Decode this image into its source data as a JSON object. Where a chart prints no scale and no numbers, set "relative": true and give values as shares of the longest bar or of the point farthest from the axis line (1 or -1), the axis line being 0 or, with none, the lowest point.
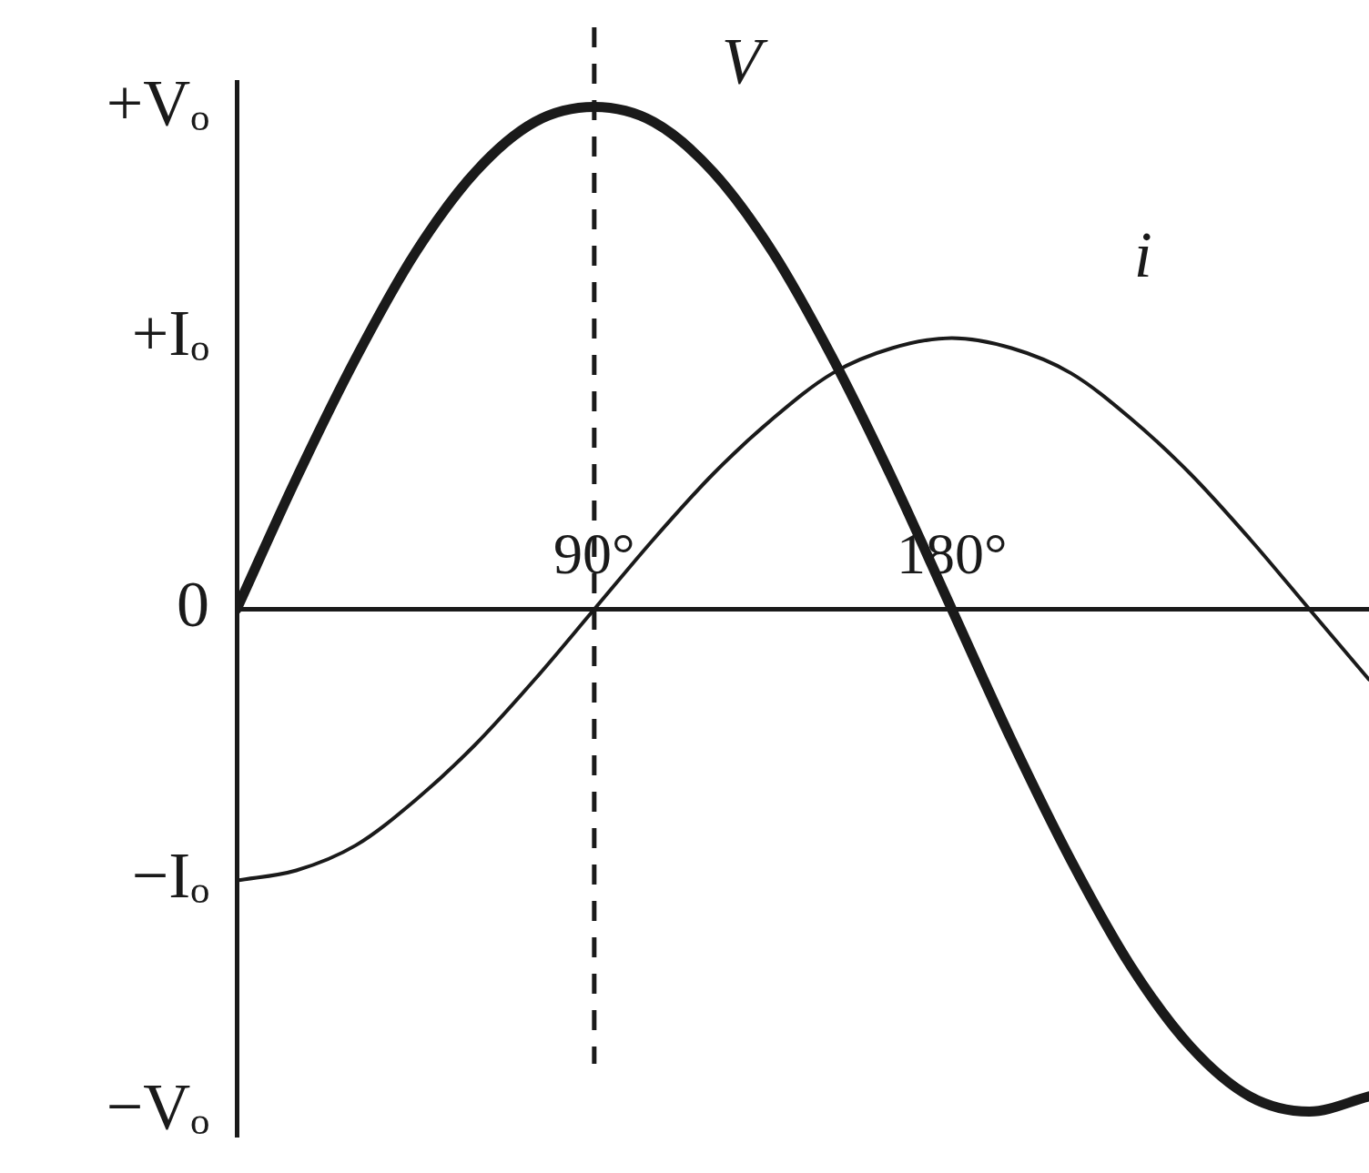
{
  "chart_data": {
    "type": "line",
    "x": [
      0,
      15,
      30,
      45,
      60,
      75,
      90,
      105,
      120,
      135,
      150,
      165,
      180,
      195,
      210,
      225,
      240,
      255,
      270,
      285
    ],
    "series": [
      {
        "name": "V",
        "color": "#1a1a1a",
        "values": [
          0,
          0.26,
          0.5,
          0.71,
          0.87,
          0.97,
          1,
          0.97,
          0.87,
          0.71,
          0.5,
          0.26,
          0,
          -0.26,
          -0.5,
          -0.71,
          -0.87,
          -0.97,
          -1,
          -0.97
        ]
      },
      {
        "name": "i",
        "color": "#1a1a1a",
        "values": [
          -0.54,
          -0.52,
          -0.47,
          -0.38,
          -0.27,
          -0.14,
          0,
          0.14,
          0.27,
          0.38,
          0.47,
          0.52,
          0.54,
          0.52,
          0.47,
          0.38,
          0.27,
          0.14,
          0,
          -0.14
        ]
      }
    ],
    "xlim": [
      0,
      285
    ],
    "xticks": [
      {
        "value": 90,
        "label": "90°"
      },
      {
        "value": 180,
        "label": "180°"
      }
    ],
    "relative": true,
    "annotations": [
      "+Vₒ",
      "+Iₒ",
      "0",
      "−Iₒ",
      "−Vₒ"
    ],
    "ref_lines": [
      {
        "axis": "x",
        "value": 90,
        "line_style": "dashed"
      }
    ],
    "grid": false,
    "legend": false,
    "marker": "none",
    "line_style": "solid"
  }
}
